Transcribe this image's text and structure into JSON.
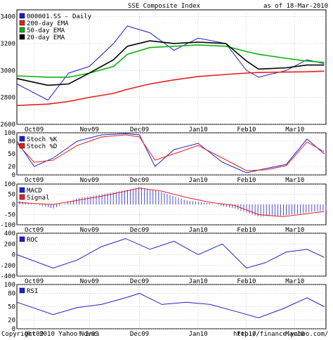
{
  "header": {
    "title": "SSE Composite Index",
    "as_of": "as of 18-Mar-2010"
  },
  "footer": {
    "copyright": "Copyright 2010 Yahoo! Inc.",
    "url": "http://finance.yahoo.com/"
  },
  "x_labels": [
    "Oct09",
    "Nov09",
    "Dec09",
    "Jan10",
    "Feb10",
    "Mar10"
  ],
  "colors": {
    "price": "#1c1cc8",
    "ema200": "#e62020",
    "ema50": "#10b010",
    "ema20": "#000000",
    "osc": "#2020d0",
    "signal": "#e62020",
    "grid": "#aaaaaa"
  },
  "chart_data": [
    {
      "type": "line",
      "panel": "price",
      "ylim": [
        2600,
        3450
      ],
      "yticks": [
        2600,
        2800,
        3000,
        3200,
        3400
      ],
      "x": [
        "2009-09-21",
        "2009-10-09",
        "2009-10-21",
        "2009-11-02",
        "2009-11-16",
        "2009-11-24",
        "2009-12-07",
        "2009-12-21",
        "2010-01-04",
        "2010-01-20",
        "2010-02-01",
        "2010-02-08",
        "2010-02-24",
        "2010-03-08",
        "2010-03-18"
      ],
      "series": [
        {
          "name": "000001.SS - Daily",
          "values": [
            2900,
            2780,
            2980,
            3030,
            3200,
            3330,
            3280,
            3150,
            3240,
            3200,
            3000,
            2950,
            3000,
            3080,
            3050
          ]
        },
        {
          "name": "200-day EMA",
          "values": [
            2740,
            2750,
            2770,
            2800,
            2830,
            2860,
            2900,
            2930,
            2955,
            2970,
            2980,
            2985,
            2988,
            2990,
            2995
          ]
        },
        {
          "name": "50-day EMA",
          "values": [
            2960,
            2950,
            2950,
            2980,
            3030,
            3120,
            3170,
            3180,
            3190,
            3180,
            3140,
            3120,
            3090,
            3070,
            3060
          ]
        },
        {
          "name": "20-day EMA",
          "values": [
            2940,
            2890,
            2900,
            2980,
            3080,
            3180,
            3220,
            3200,
            3210,
            3200,
            3070,
            3010,
            3020,
            3040,
            3040
          ]
        }
      ]
    },
    {
      "type": "line",
      "panel": "stochastic",
      "ylim": [
        0,
        100
      ],
      "yticks": [
        0,
        20,
        50,
        80,
        100
      ],
      "x": [
        "2009-09-21",
        "2009-10-01",
        "2009-10-12",
        "2009-10-26",
        "2009-11-09",
        "2009-11-23",
        "2009-12-01",
        "2009-12-10",
        "2009-12-21",
        "2010-01-04",
        "2010-01-18",
        "2010-02-01",
        "2010-02-12",
        "2010-02-24",
        "2010-03-08",
        "2010-03-18"
      ],
      "series": [
        {
          "name": "Stoch %K",
          "values": [
            80,
            20,
            40,
            80,
            95,
            98,
            95,
            20,
            60,
            75,
            30,
            5,
            15,
            25,
            85,
            50
          ]
        },
        {
          "name": "Stoch %D",
          "values": [
            75,
            30,
            35,
            70,
            90,
            95,
            90,
            35,
            50,
            70,
            40,
            10,
            12,
            22,
            78,
            55
          ]
        }
      ]
    },
    {
      "type": "bar+line",
      "panel": "macd",
      "ylim": [
        -100,
        100
      ],
      "yticks": [
        -100,
        -50,
        0,
        50,
        100
      ],
      "x": [
        "2009-09-21",
        "2009-10-12",
        "2009-10-26",
        "2009-11-09",
        "2009-11-23",
        "2009-12-01",
        "2009-12-14",
        "2009-12-28",
        "2010-01-11",
        "2010-01-25",
        "2010-02-08",
        "2010-02-22",
        "2010-03-08",
        "2010-03-18"
      ],
      "series": [
        {
          "name": "MACD",
          "values": [
            20,
            -20,
            30,
            50,
            70,
            85,
            60,
            20,
            5,
            -20,
            -60,
            -55,
            -40,
            -30
          ]
        },
        {
          "name": "Signal",
          "values": [
            10,
            0,
            20,
            40,
            65,
            80,
            65,
            35,
            10,
            -5,
            -50,
            -60,
            -45,
            -35
          ]
        }
      ]
    },
    {
      "type": "line",
      "panel": "roc",
      "ylim": [
        -400,
        400
      ],
      "yticks": [
        -400,
        -200,
        0,
        200,
        400
      ],
      "x": [
        "2009-09-21",
        "2009-10-12",
        "2009-10-26",
        "2009-11-09",
        "2009-11-23",
        "2009-12-07",
        "2009-12-21",
        "2010-01-04",
        "2010-01-18",
        "2010-02-01",
        "2010-02-12",
        "2010-02-24",
        "2010-03-08",
        "2010-03-18"
      ],
      "series": [
        {
          "name": "ROC",
          "values": [
            0,
            -250,
            -100,
            150,
            300,
            100,
            250,
            0,
            200,
            -250,
            -150,
            50,
            100,
            -50
          ]
        }
      ]
    },
    {
      "type": "line",
      "panel": "rsi",
      "ylim": [
        0,
        100
      ],
      "yticks": [
        0,
        20,
        50,
        80,
        100
      ],
      "x": [
        "2009-09-21",
        "2009-10-12",
        "2009-10-26",
        "2009-11-09",
        "2009-11-23",
        "2009-12-01",
        "2009-12-14",
        "2009-12-28",
        "2010-01-11",
        "2010-01-25",
        "2010-02-08",
        "2010-02-22",
        "2010-03-08",
        "2010-03-18"
      ],
      "series": [
        {
          "name": "RSI",
          "values": [
            60,
            32,
            48,
            55,
            70,
            80,
            55,
            60,
            55,
            40,
            25,
            45,
            70,
            50
          ]
        }
      ]
    }
  ]
}
